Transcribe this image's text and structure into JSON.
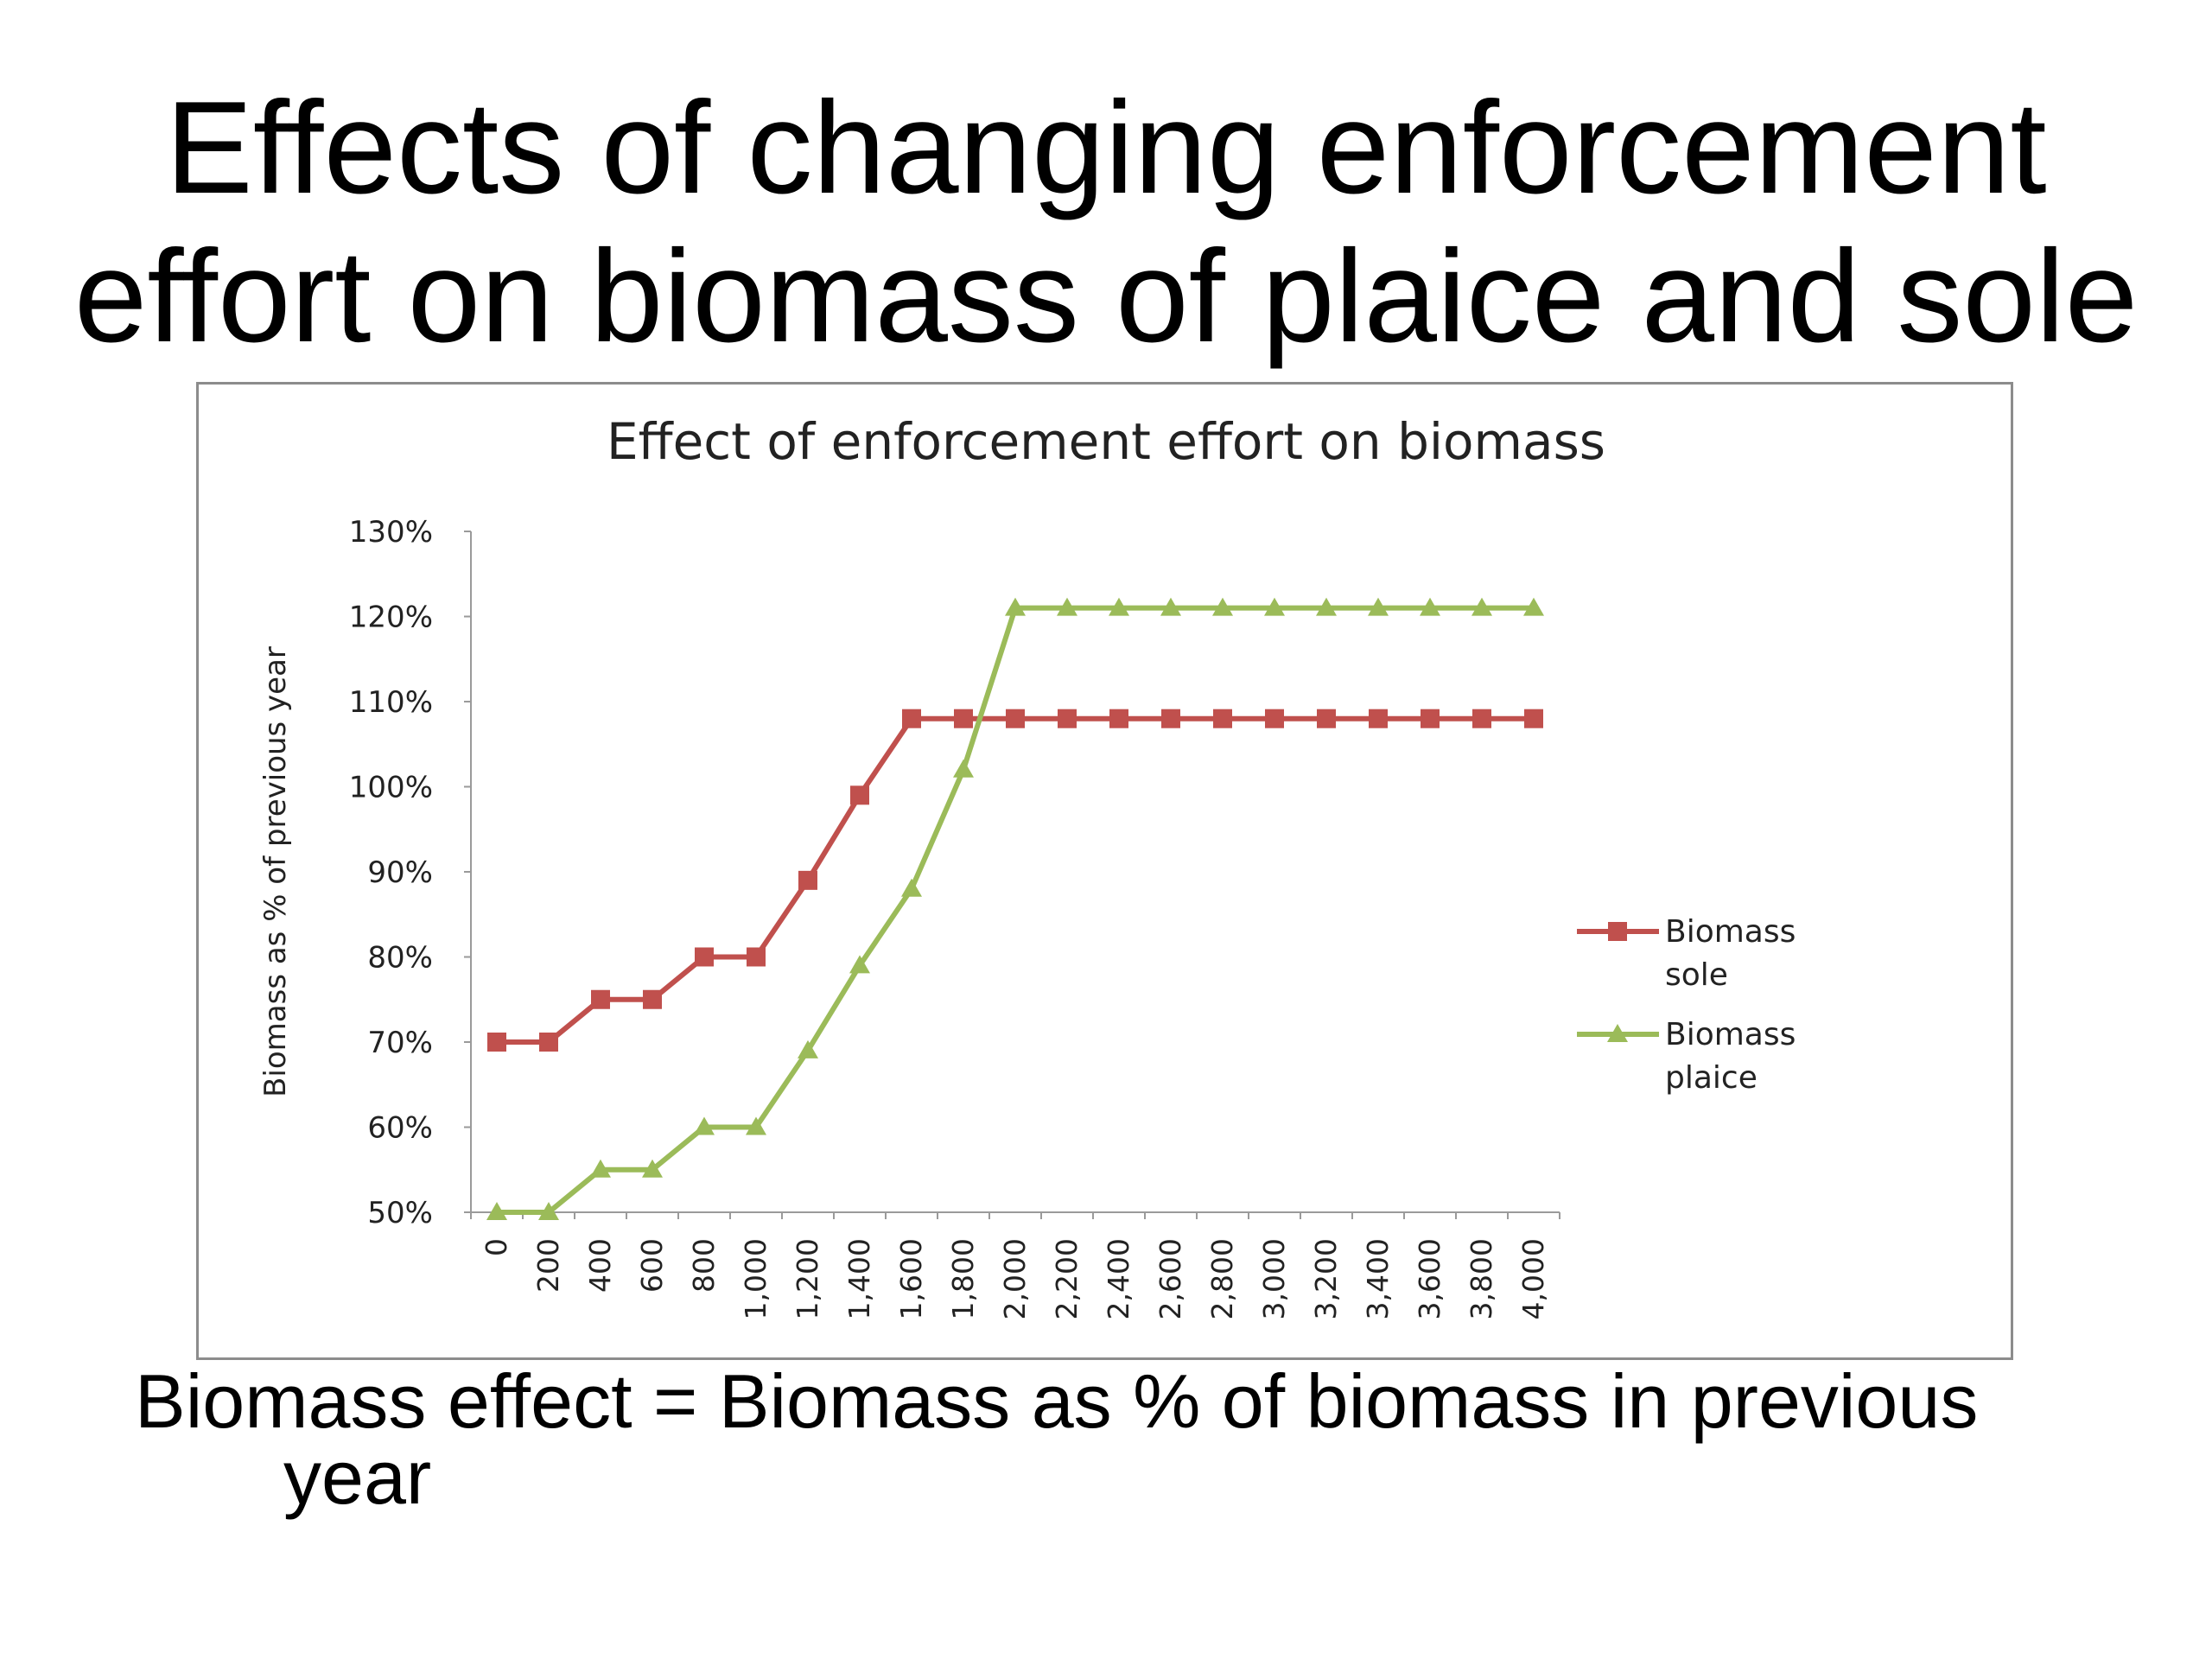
{
  "slide": {
    "title_line1": "Effects of changing enforcement",
    "title_line2": "effort on biomass of plaice and sole",
    "caption_line1": "Biomass effect = Biomass as % of biomass in previous",
    "caption_line2": "year"
  },
  "chart_data": {
    "type": "line",
    "title": "Effect of enforcement effort on biomass",
    "xlabel": "",
    "ylabel": "Biomass as % of previous year",
    "categories": [
      "0",
      "200",
      "400",
      "600",
      "800",
      "1,000",
      "1,200",
      "1,400",
      "1,600",
      "1,800",
      "2,000",
      "2,200",
      "2,400",
      "2,600",
      "2,800",
      "3,000",
      "3,200",
      "3,400",
      "3,600",
      "3,800",
      "4,000"
    ],
    "y_ticks": [
      "50%",
      "60%",
      "70%",
      "80%",
      "90%",
      "100%",
      "110%",
      "120%",
      "130%"
    ],
    "ylim": [
      50,
      130
    ],
    "y_unit": "%",
    "grid": false,
    "legend_position": "right",
    "series": [
      {
        "name": "Biomass sole",
        "legend_lines": [
          "Biomass",
          "sole"
        ],
        "color": "#c0504d",
        "marker": "square",
        "values": [
          70,
          70,
          75,
          75,
          80,
          80,
          89,
          99,
          108,
          108,
          108,
          108,
          108,
          108,
          108,
          108,
          108,
          108,
          108,
          108,
          108
        ]
      },
      {
        "name": "Biomass plaice",
        "legend_lines": [
          "Biomass",
          "plaice"
        ],
        "color": "#9bbb59",
        "marker": "triangle",
        "values": [
          50,
          50,
          55,
          55,
          60,
          60,
          69,
          79,
          88,
          102,
          121,
          121,
          121,
          121,
          121,
          121,
          121,
          121,
          121,
          121,
          121
        ]
      }
    ]
  }
}
